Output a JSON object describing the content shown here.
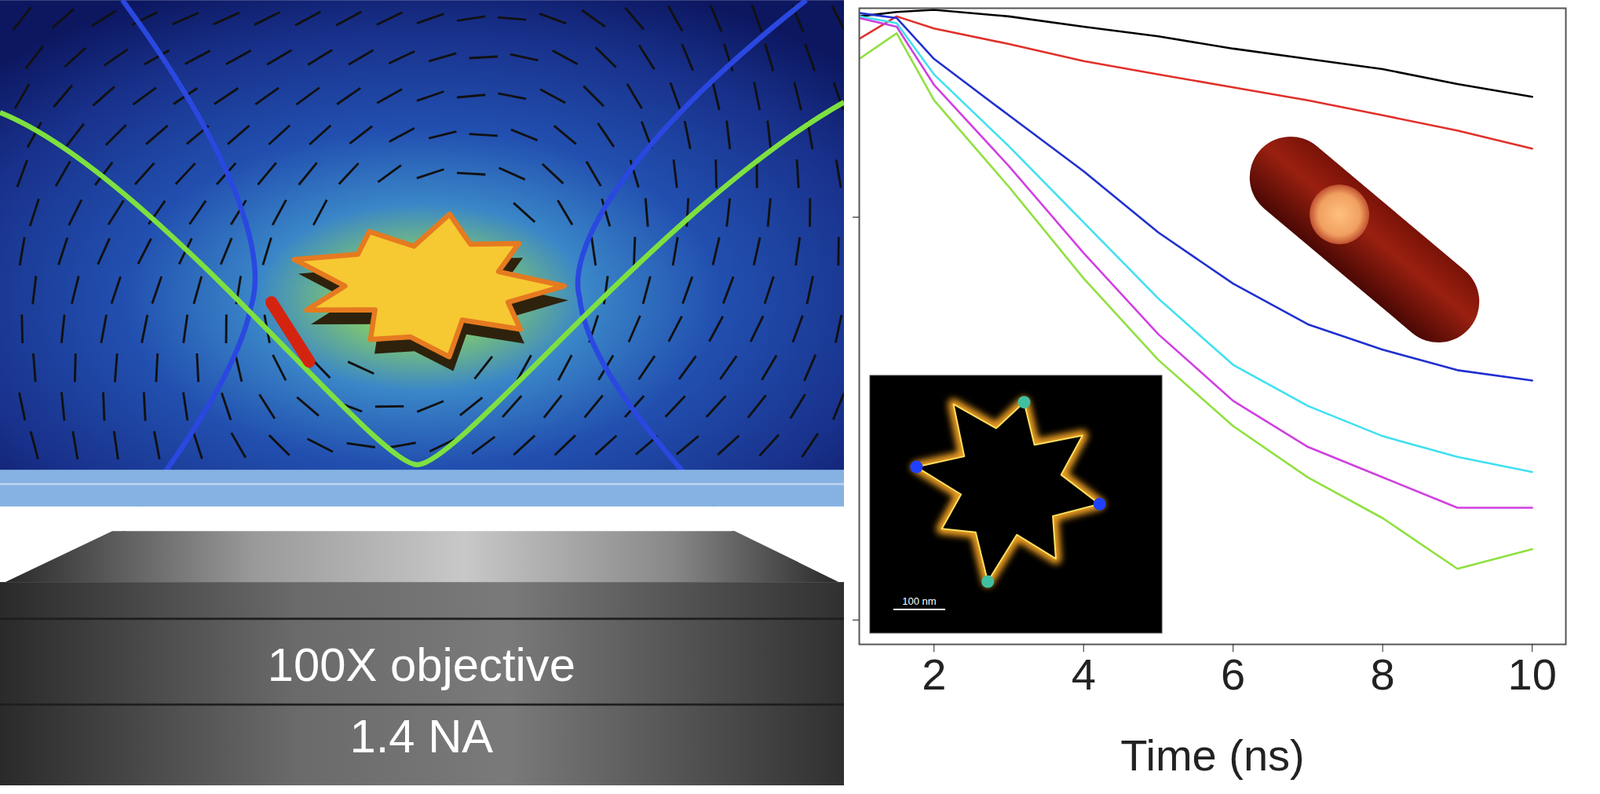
{
  "diagram": {
    "objective": {
      "label": "100X objective",
      "na": "1.4 NA"
    }
  },
  "chart_data": {
    "type": "line",
    "xlabel": "Time (ns)",
    "x": [
      1,
      1.5,
      2,
      3,
      4,
      5,
      6,
      7,
      8,
      9,
      10
    ],
    "series": [
      {
        "color": "#000000",
        "values": [
          0.315,
          0.323,
          0.327,
          0.315,
          0.297,
          0.281,
          0.262,
          0.247,
          0.233,
          0.214,
          0.199
        ]
      },
      {
        "color": "#e0302a",
        "values": [
          0.277,
          0.315,
          0.294,
          0.269,
          0.244,
          0.226,
          0.21,
          0.195,
          0.179,
          0.164,
          0.148
        ]
      },
      {
        "color": "#2030d0",
        "values": [
          0.321,
          0.312,
          0.247,
          0.179,
          0.13,
          0.0916,
          0.0684,
          0.0542,
          0.0469,
          0.0417,
          0.0393
        ]
      },
      {
        "color": "#40e0f0",
        "values": [
          0.315,
          0.303,
          0.226,
          0.15,
          0.0971,
          0.0628,
          0.043,
          0.034,
          0.0286,
          0.0254,
          0.0233
        ]
      },
      {
        "color": "#d040e0",
        "values": [
          0.312,
          0.297,
          0.213,
          0.134,
          0.0815,
          0.0512,
          0.035,
          0.0269,
          0.0226,
          0.019,
          0.019
        ]
      },
      {
        "color": "#90e040",
        "values": [
          0.247,
          0.286,
          0.195,
          0.119,
          0.0705,
          0.0442,
          0.0303,
          0.0226,
          0.0179,
          0.0134,
          0.015
        ]
      }
    ],
    "xlim": [
      1,
      10.45
    ],
    "xticks": [
      2,
      4,
      6,
      8,
      10
    ],
    "ylim": [
      0.0087,
      0.33
    ],
    "yticks": [
      0.01,
      0.1
    ],
    "log": "y",
    "grid": false,
    "tick_labels": "x",
    "annotations": [
      "100 nm"
    ]
  }
}
